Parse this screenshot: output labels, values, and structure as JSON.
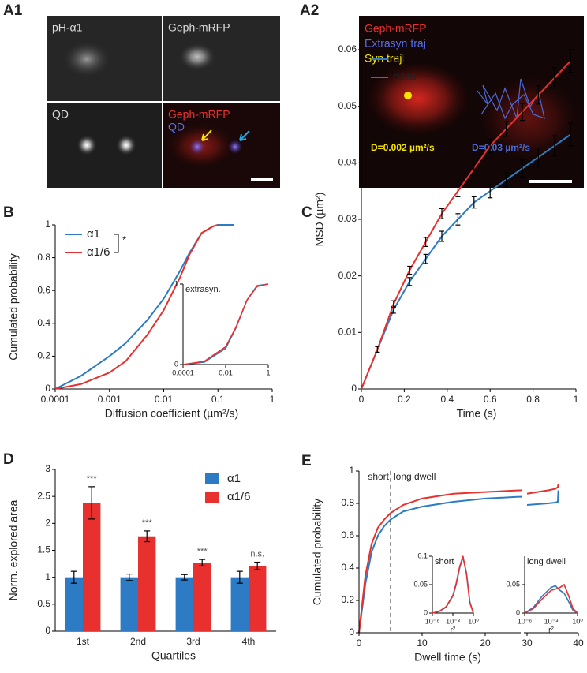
{
  "images": [
    {
      "panel": "A1",
      "tiles": [
        {
          "labels": [
            "pH-α1"
          ]
        },
        {
          "labels": [
            "Geph-mRFP"
          ]
        },
        {
          "labels": [
            "QD"
          ]
        },
        {
          "labels": [
            "Geph-mRFP",
            "QD"
          ]
        }
      ]
    },
    {
      "panel": "A2",
      "labels": [
        "Geph-mRFP",
        "Extrasyn traj",
        "Syn traj"
      ],
      "annotations": [
        "D=0.002 µm²/s",
        "D=0.03 µm²/s"
      ]
    }
  ],
  "chart_data": [
    {
      "panel": "B",
      "type": "line",
      "xscale": "log",
      "xlabel": "Diffusion coefficient (µm²/s)",
      "ylabel": "Cumulated probability",
      "xlim": [
        0.0001,
        1
      ],
      "ylim": [
        0,
        1
      ],
      "xticks": [
        0.0001,
        0.001,
        0.01,
        0.1,
        1
      ],
      "yticks": [
        0,
        0.2,
        0.4,
        0.6,
        0.8,
        1
      ],
      "legend": "upper left",
      "significance": "*",
      "x": [
        0.0001,
        0.0003,
        0.001,
        0.002,
        0.005,
        0.01,
        0.02,
        0.03,
        0.05,
        0.08,
        0.1,
        0.2
      ],
      "series": [
        {
          "name": "α1",
          "color": "#2c7bc4",
          "values": [
            0,
            0.08,
            0.2,
            0.28,
            0.42,
            0.55,
            0.72,
            0.83,
            0.95,
            0.99,
            1,
            1
          ]
        },
        {
          "name": "α1/6",
          "color": "#e8312f",
          "values": [
            0,
            0.03,
            0.1,
            0.17,
            0.33,
            0.48,
            0.68,
            0.82,
            0.95,
            0.99,
            1,
            null
          ]
        }
      ]
    },
    {
      "type": "line",
      "title": "extrasyn.",
      "xscale": "log",
      "xlim": [
        0.0001,
        1
      ],
      "ylim": [
        0,
        1
      ],
      "xticks": [
        0.0001,
        0.01,
        1
      ],
      "yticks": [
        0,
        1
      ],
      "x": [
        0.0001,
        0.001,
        0.01,
        0.03,
        0.1,
        0.3,
        1
      ],
      "series": [
        {
          "color": "#2c7bc4",
          "values": [
            0,
            0.03,
            0.2,
            0.45,
            0.8,
            0.98,
            1
          ]
        },
        {
          "color": "#e8312f",
          "values": [
            0,
            0.04,
            0.22,
            0.46,
            0.8,
            0.97,
            1
          ]
        }
      ]
    },
    {
      "panel": "C",
      "type": "line",
      "xlabel": "Time (s)",
      "ylabel": "MSD (µm²)",
      "xlim": [
        0,
        1
      ],
      "ylim": [
        0,
        0.06
      ],
      "xticks": [
        0,
        0.2,
        0.4,
        0.6,
        0.8,
        1
      ],
      "yticks": [
        0,
        0.01,
        0.02,
        0.03,
        0.04,
        0.05,
        0.06
      ],
      "legend": "upper left",
      "x": [
        0,
        0.075,
        0.15,
        0.225,
        0.3,
        0.375,
        0.45,
        0.525,
        0.6,
        0.675,
        0.75,
        0.825,
        0.9,
        0.975
      ],
      "series": [
        {
          "name": "α1",
          "color": "#2c7bc4",
          "values": [
            0,
            0.007,
            0.014,
            0.019,
            0.023,
            0.027,
            0.03,
            0.033,
            0.035,
            0.037,
            0.039,
            0.041,
            0.043,
            0.045
          ],
          "errors": [
            null,
            0.0005,
            0.0006,
            0.0007,
            0.0008,
            0.0009,
            0.001,
            0.001,
            0.0012,
            0.0013,
            0.0015,
            0.0016,
            0.0018,
            0.002
          ]
        },
        {
          "name": "α1/6",
          "color": "#e8312f",
          "values": [
            0,
            0.007,
            0.015,
            0.021,
            0.026,
            0.031,
            0.035,
            0.039,
            0.043,
            0.046,
            0.049,
            0.052,
            0.055,
            0.058
          ],
          "errors": [
            null,
            0.0005,
            0.0006,
            0.0007,
            0.0008,
            0.0009,
            0.001,
            0.001,
            0.0012,
            0.0013,
            0.0015,
            0.0016,
            0.0018,
            0.002
          ]
        }
      ]
    },
    {
      "panel": "D",
      "type": "bar",
      "xlabel": "Quartiles",
      "ylabel": "Norm. explored area",
      "categories": [
        "1st",
        "2nd",
        "3rd",
        "4th"
      ],
      "ylim": [
        0,
        3
      ],
      "yticks": [
        0,
        0.5,
        1,
        1.5,
        2,
        2.5,
        3
      ],
      "legend": "upper right",
      "annotations": [
        "***",
        "***",
        "***",
        "n.s."
      ],
      "series": [
        {
          "name": "α1",
          "color": "#2c7bc4",
          "values": [
            1,
            1,
            1,
            1
          ],
          "errors": [
            0.11,
            0.06,
            0.05,
            0.11
          ]
        },
        {
          "name": "α1/6",
          "color": "#e8312f",
          "values": [
            2.38,
            1.76,
            1.27,
            1.21
          ],
          "errors": [
            0.3,
            0.1,
            0.06,
            0.07
          ]
        }
      ]
    },
    {
      "panel": "E",
      "type": "line",
      "xlabel": "Dwell time (s)",
      "ylabel": "Cumulated probability",
      "xlim": [
        0,
        30
      ],
      "ylim": [
        0,
        1
      ],
      "xticks": [
        0,
        10,
        20,
        30
      ],
      "yticks": [
        0,
        0.2,
        0.4,
        0.6,
        0.8,
        1
      ],
      "x2lim": [
        30,
        40
      ],
      "x2ticks": [
        30,
        40
      ],
      "divider": {
        "x": 5,
        "labels": [
          "short",
          "long dwell"
        ]
      },
      "x": [
        0,
        1,
        2,
        3,
        4,
        5,
        7,
        10,
        15,
        20,
        25,
        30
      ],
      "series": [
        {
          "color": "#2c7bc4",
          "values": [
            0,
            0.3,
            0.5,
            0.6,
            0.66,
            0.7,
            0.75,
            0.78,
            0.81,
            0.83,
            0.84,
            0.845
          ]
        },
        {
          "color": "#e8312f",
          "values": [
            0,
            0.35,
            0.55,
            0.65,
            0.7,
            0.74,
            0.79,
            0.83,
            0.86,
            0.87,
            0.88,
            0.885
          ]
        },
        {
          "color": "#2c7bc4",
          "axis": "x2",
          "x": [
            30,
            32,
            34,
            35.5,
            36,
            36.1
          ],
          "values": [
            0.79,
            0.795,
            0.8,
            0.805,
            0.81,
            0.88
          ]
        },
        {
          "color": "#e8312f",
          "axis": "x2",
          "x": [
            30,
            32,
            34,
            35.5,
            36,
            36.1
          ],
          "values": [
            0.86,
            0.87,
            0.88,
            0.89,
            0.9,
            0.92
          ]
        }
      ]
    },
    {
      "type": "line",
      "title": "short",
      "xlabel": "r²",
      "xscale": "log",
      "xlim": [
        1e-06,
        1
      ],
      "ylim": [
        0,
        0.1
      ],
      "xticks": [
        {
          "value": 1e-06,
          "label": "10⁻⁶"
        },
        {
          "value": 0.001,
          "label": "10⁻³"
        },
        {
          "value": 1,
          "label": "10⁰"
        }
      ],
      "yticks": [
        0,
        0.05,
        0.1
      ],
      "x": [
        1e-06,
        1e-05,
        0.0001,
        0.001,
        0.003,
        0.01,
        0.03,
        0.1,
        0.3,
        1
      ],
      "series": [
        {
          "color": "#2c7bc4",
          "values": [
            0,
            0.003,
            0.01,
            0.03,
            0.05,
            0.08,
            0.098,
            0.07,
            0.02,
            0
          ]
        },
        {
          "color": "#e8312f",
          "values": [
            0,
            0.003,
            0.011,
            0.031,
            0.052,
            0.082,
            0.1,
            0.068,
            0.018,
            0
          ]
        }
      ]
    },
    {
      "type": "line",
      "title": "long dwell",
      "xlabel": "r²",
      "xscale": "log",
      "xlim": [
        1e-06,
        1
      ],
      "ylim": [
        0,
        0.1
      ],
      "xticks": [
        {
          "value": 1e-06,
          "label": "10⁻⁶"
        },
        {
          "value": 0.001,
          "label": "10⁻³"
        },
        {
          "value": 1,
          "label": "10⁰"
        }
      ],
      "yticks": [
        0,
        0.05
      ],
      "x": [
        1e-06,
        1e-05,
        0.0001,
        0.001,
        0.003,
        0.01,
        0.03,
        0.1,
        0.3,
        1
      ],
      "series": [
        {
          "color": "#2c7bc4",
          "values": [
            0,
            0.01,
            0.03,
            0.045,
            0.048,
            0.04,
            0.035,
            0.02,
            0.005,
            0
          ]
        },
        {
          "color": "#e8312f",
          "values": [
            0,
            0.008,
            0.025,
            0.04,
            0.042,
            0.045,
            0.05,
            0.03,
            0.008,
            0
          ]
        }
      ]
    }
  ]
}
